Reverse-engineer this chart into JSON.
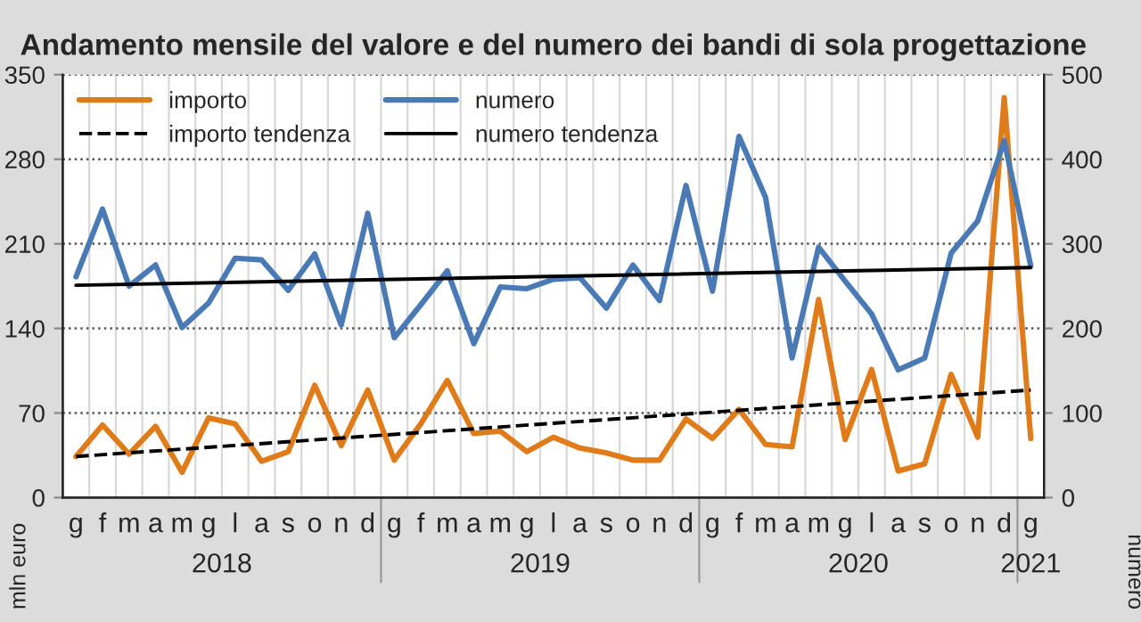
{
  "chart_data": {
    "type": "line",
    "title": "Andamento mensile del valore e del numero dei bandi di sola progettazione",
    "xlabel": null,
    "ylabel": "mln euro",
    "y2label": "numero",
    "categories": [
      "g",
      "f",
      "m",
      "a",
      "m",
      "g",
      "l",
      "a",
      "s",
      "o",
      "n",
      "d",
      "g",
      "f",
      "m",
      "a",
      "m",
      "g",
      "l",
      "a",
      "s",
      "o",
      "n",
      "d",
      "g",
      "f",
      "m",
      "a",
      "m",
      "g",
      "l",
      "a",
      "s",
      "o",
      "n",
      "d",
      "g"
    ],
    "annotations": [
      "2018",
      "2019",
      "2020",
      "2021"
    ],
    "series": [
      {
        "name": "importo",
        "color": "#e07b1a",
        "values": [
          34,
          60,
          36,
          59,
          21,
          66,
          61,
          30,
          38,
          93,
          43,
          89,
          31,
          61,
          97,
          53,
          55,
          38,
          50,
          41,
          37,
          31,
          31,
          65,
          49,
          73,
          44,
          42,
          164,
          48,
          106,
          22,
          28,
          102,
          50,
          331,
          49
        ]
      },
      {
        "name": "importo tendenza",
        "color": "#000000",
        "line_style": "dashed",
        "values": [
          34,
          null,
          null,
          null,
          null,
          null,
          null,
          null,
          null,
          null,
          null,
          null,
          null,
          null,
          null,
          null,
          null,
          null,
          null,
          null,
          null,
          null,
          null,
          null,
          null,
          null,
          null,
          null,
          null,
          null,
          null,
          null,
          null,
          null,
          null,
          null,
          89
        ]
      },
      {
        "name": "numero",
        "color": "#4a7ab5",
        "axis": "y2",
        "values": [
          261,
          341,
          250,
          275,
          201,
          230,
          283,
          281,
          245,
          288,
          204,
          336,
          189,
          228,
          268,
          182,
          249,
          247,
          258,
          260,
          224,
          275,
          233,
          369,
          244,
          427,
          355,
          165,
          296,
          256,
          217,
          151,
          165,
          289,
          327,
          422,
          274
        ]
      },
      {
        "name": "numero tendenza",
        "color": "#000000",
        "axis": "y2",
        "values": [
          251,
          null,
          null,
          null,
          null,
          null,
          null,
          null,
          null,
          null,
          null,
          null,
          null,
          null,
          null,
          null,
          null,
          null,
          null,
          null,
          null,
          null,
          null,
          null,
          null,
          null,
          null,
          null,
          null,
          null,
          null,
          null,
          null,
          null,
          null,
          null,
          272
        ]
      }
    ],
    "ylim": [
      0,
      350
    ],
    "yticks": [
      0,
      70,
      140,
      210,
      280,
      350
    ],
    "y2lim": [
      0,
      500
    ],
    "y2ticks": [
      0,
      100,
      200,
      300,
      400,
      500
    ],
    "grid": true,
    "legend": "top left"
  }
}
